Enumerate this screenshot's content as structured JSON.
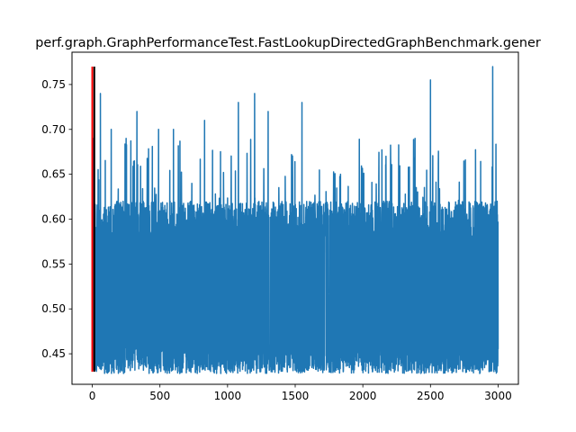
{
  "chart_data": {
    "type": "line",
    "title": "perf.graph.GraphPerformanceTest.FastLookupDirectedGraphBenchmark.gener",
    "xlabel": "",
    "ylabel": "",
    "xlim": [
      -150,
      3150
    ],
    "ylim": [
      0.416,
      0.786
    ],
    "x_ticks": [
      0,
      500,
      1000,
      1500,
      2000,
      2500,
      3000
    ],
    "y_ticks": [
      0.45,
      0.5,
      0.55,
      0.6,
      0.65,
      0.7,
      0.75
    ],
    "y_tick_labels": [
      "0.45",
      "0.50",
      "0.55",
      "0.60",
      "0.65",
      "0.70",
      "0.75"
    ],
    "grid": false,
    "legend": "none",
    "series": [
      {
        "color": "#1f77b4",
        "n_points": 3000,
        "x_range": [
          1,
          3000
        ],
        "baseline_band": [
          0.44,
          0.62
        ],
        "min": 0.428,
        "max": 0.771,
        "spikes": [
          {
            "x": 10,
            "y": 0.69
          },
          {
            "x": 60,
            "y": 0.74
          },
          {
            "x": 140,
            "y": 0.7
          },
          {
            "x": 250,
            "y": 0.69
          },
          {
            "x": 330,
            "y": 0.72
          },
          {
            "x": 490,
            "y": 0.7
          },
          {
            "x": 600,
            "y": 0.7
          },
          {
            "x": 830,
            "y": 0.71
          },
          {
            "x": 1080,
            "y": 0.73
          },
          {
            "x": 1200,
            "y": 0.74
          },
          {
            "x": 1300,
            "y": 0.72
          },
          {
            "x": 1550,
            "y": 0.73
          },
          {
            "x": 2500,
            "y": 0.755
          },
          {
            "x": 2960,
            "y": 0.77
          }
        ]
      }
    ],
    "markers": [
      {
        "color": "#ff0000",
        "x": 0,
        "y_range": [
          0.43,
          0.77
        ]
      },
      {
        "color": "#000000",
        "x": 15,
        "y_range": [
          0.43,
          0.77
        ]
      }
    ]
  }
}
